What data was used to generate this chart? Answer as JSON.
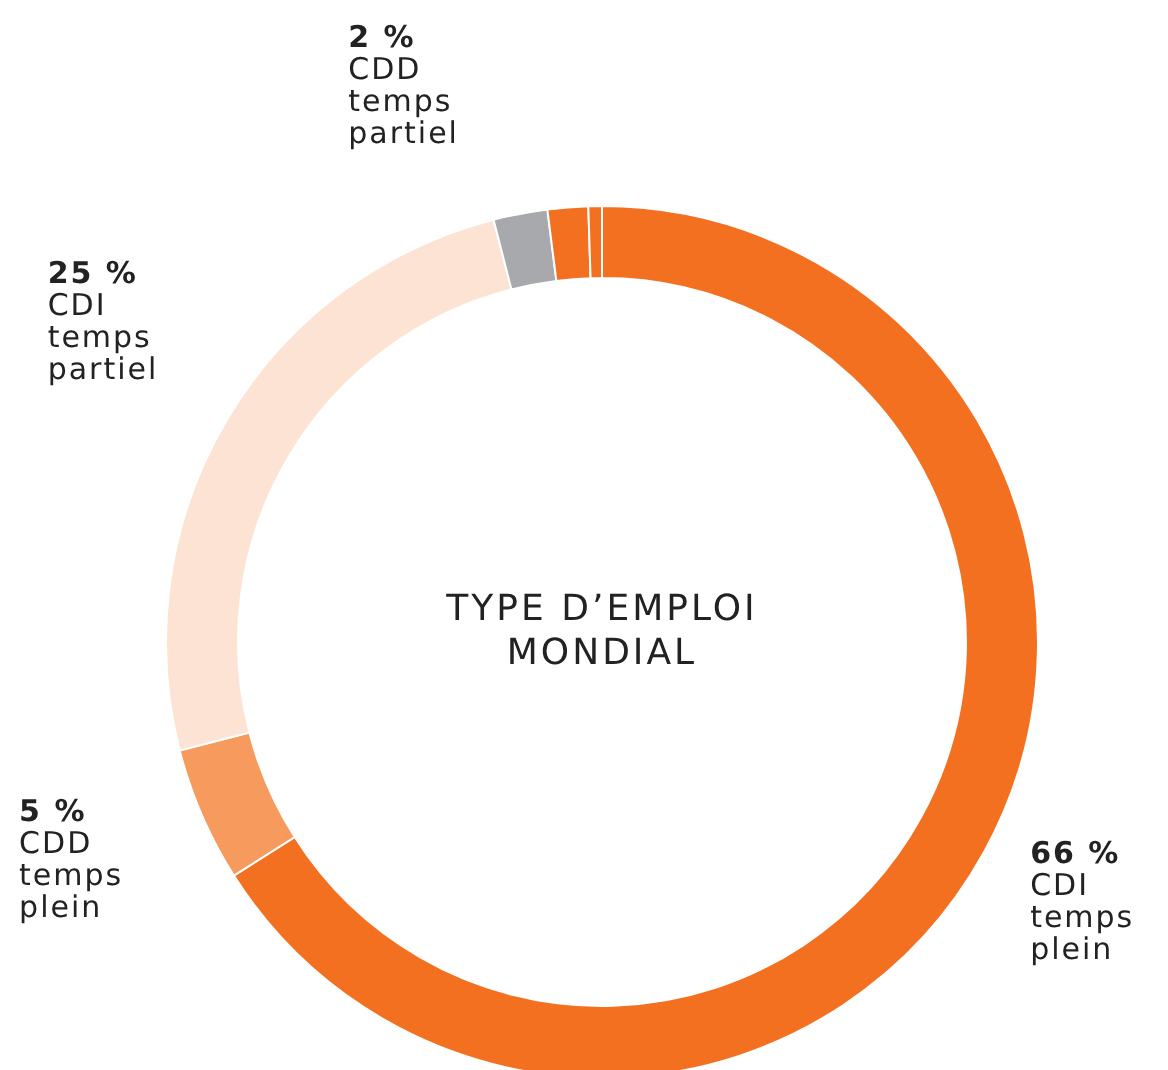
{
  "chart_data": {
    "type": "donut",
    "title": "TYPE D’EMPLOI MONDIAL",
    "categories": [
      "CDI temps plein",
      "CDD temps plein",
      "CDI temps partiel",
      "CDD temps partiel",
      null,
      null
    ],
    "values": [
      66,
      5,
      25,
      2,
      1.5,
      0.5
    ],
    "value_labels": [
      "66 %",
      "5 %",
      "25 %",
      "2 %",
      null,
      null
    ],
    "colors": [
      "#f37021",
      "#f79a5e",
      "#fde3d3",
      "#a7a9ac",
      "#f37021",
      "#f37021"
    ]
  }
}
